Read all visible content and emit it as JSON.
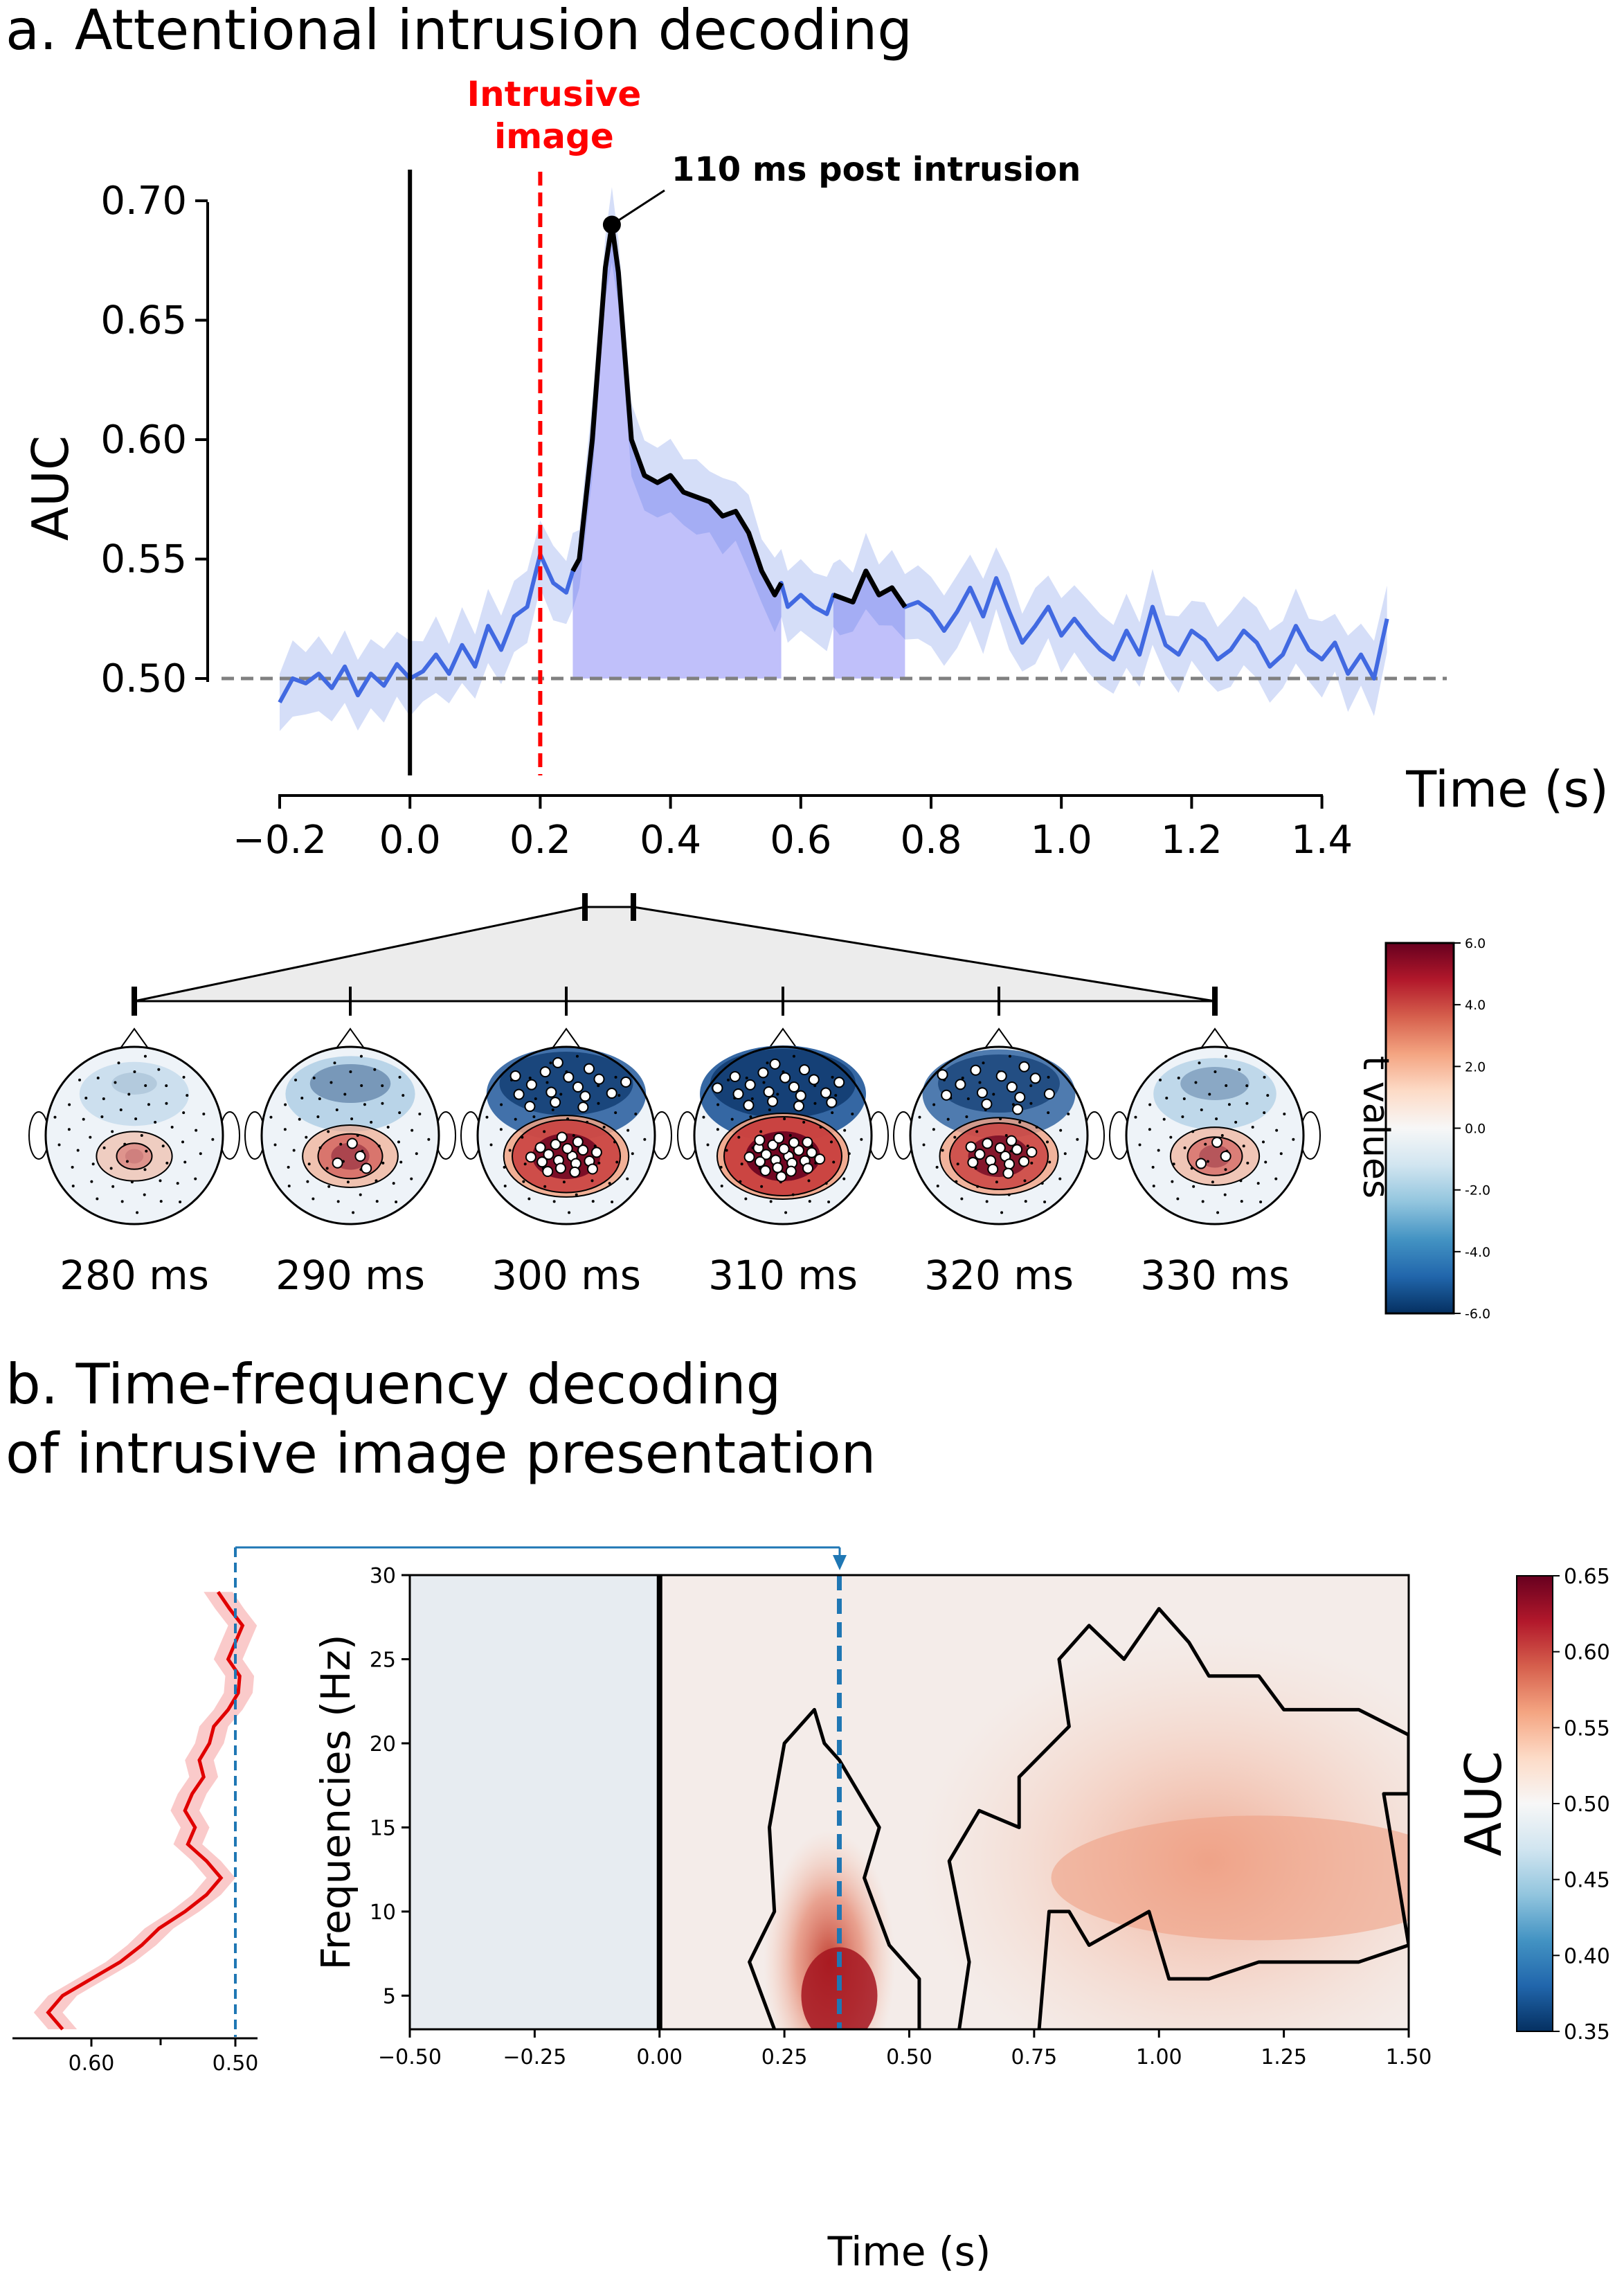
{
  "panel_a": {
    "title": "a. Attentional intrusion decoding",
    "intrusive_label_line1": "Intrusive",
    "intrusive_label_line2": "image",
    "peak_annotation": "110 ms post intrusion"
  },
  "panel_b": {
    "title_line1": "b. Time-frequency decoding",
    "title_line2": "of intrusive image presentation"
  },
  "topomaps": {
    "labels": [
      "280 ms",
      "290 ms",
      "300 ms",
      "310 ms",
      "320 ms",
      "330 ms"
    ],
    "colorbar_label": "t values",
    "colorbar_ticks": [
      "6.0",
      "4.0",
      "2.0",
      "0.0",
      "-2.0",
      "-4.0",
      "-6.0"
    ]
  },
  "colors": {
    "line_blue": "#4169e1",
    "line_sig": "#000000",
    "intrusion_red": "#ff0000",
    "tf_line_red": "#e00000",
    "dash_blue": "#1f77b4"
  },
  "chart_data": [
    {
      "type": "line",
      "xlabel": "Time (s)",
      "ylabel": "AUC",
      "xlim": [
        -0.2,
        1.5
      ],
      "ylim": [
        0.48,
        0.72
      ],
      "xticks": [
        "−0.2",
        "0.0",
        "0.2",
        "0.4",
        "0.6",
        "0.8",
        "1.0",
        "1.2",
        "1.4"
      ],
      "yticks": [
        "0.50",
        "0.55",
        "0.60",
        "0.65",
        "0.70"
      ],
      "chance_level": 0.5,
      "stimulus_onset": 0.0,
      "intrusion_onset": 0.2,
      "peak": {
        "x": 0.31,
        "y": 0.69
      },
      "significant_windows": [
        [
          0.25,
          0.57
        ],
        [
          0.65,
          0.76
        ]
      ],
      "x": [
        -0.2,
        -0.18,
        -0.16,
        -0.14,
        -0.12,
        -0.1,
        -0.08,
        -0.06,
        -0.04,
        -0.02,
        0.0,
        0.02,
        0.04,
        0.06,
        0.08,
        0.1,
        0.12,
        0.14,
        0.16,
        0.18,
        0.2,
        0.22,
        0.24,
        0.25,
        0.26,
        0.28,
        0.3,
        0.31,
        0.32,
        0.34,
        0.36,
        0.38,
        0.4,
        0.42,
        0.44,
        0.46,
        0.48,
        0.5,
        0.52,
        0.54,
        0.56,
        0.57,
        0.58,
        0.6,
        0.62,
        0.64,
        0.65,
        0.66,
        0.68,
        0.7,
        0.72,
        0.74,
        0.76,
        0.78,
        0.8,
        0.82,
        0.84,
        0.86,
        0.88,
        0.9,
        0.92,
        0.94,
        0.96,
        0.98,
        1.0,
        1.02,
        1.04,
        1.06,
        1.08,
        1.1,
        1.12,
        1.14,
        1.16,
        1.18,
        1.2,
        1.22,
        1.24,
        1.26,
        1.28,
        1.3,
        1.32,
        1.34,
        1.36,
        1.38,
        1.4,
        1.42,
        1.44,
        1.46,
        1.48,
        1.5
      ],
      "y": [
        0.49,
        0.5,
        0.498,
        0.502,
        0.496,
        0.505,
        0.493,
        0.502,
        0.497,
        0.506,
        0.5,
        0.503,
        0.51,
        0.502,
        0.514,
        0.505,
        0.522,
        0.512,
        0.526,
        0.53,
        0.552,
        0.54,
        0.536,
        0.545,
        0.55,
        0.6,
        0.672,
        0.69,
        0.67,
        0.6,
        0.585,
        0.582,
        0.585,
        0.578,
        0.576,
        0.574,
        0.568,
        0.57,
        0.561,
        0.545,
        0.535,
        0.54,
        0.53,
        0.535,
        0.53,
        0.527,
        0.535,
        0.534,
        0.532,
        0.545,
        0.535,
        0.538,
        0.53,
        0.532,
        0.528,
        0.52,
        0.528,
        0.538,
        0.526,
        0.542,
        0.528,
        0.515,
        0.522,
        0.53,
        0.518,
        0.525,
        0.518,
        0.512,
        0.508,
        0.52,
        0.51,
        0.53,
        0.514,
        0.51,
        0.52,
        0.516,
        0.508,
        0.512,
        0.52,
        0.515,
        0.505,
        0.51,
        0.522,
        0.512,
        0.508,
        0.515,
        0.502,
        0.51,
        0.5,
        0.525
      ]
    },
    {
      "type": "line",
      "xlabel": "",
      "ylabel": "",
      "xticks": [
        "0.60",
        "0.50"
      ],
      "orientation": "vertical",
      "frequencies": [
        3,
        4,
        5,
        6,
        7,
        8,
        9,
        10,
        11,
        12,
        13,
        14,
        15,
        16,
        17,
        18,
        19,
        20,
        21,
        22,
        23,
        24,
        25,
        26,
        27,
        28,
        29
      ],
      "auc": [
        0.62,
        0.63,
        0.62,
        0.6,
        0.58,
        0.565,
        0.553,
        0.535,
        0.52,
        0.51,
        0.52,
        0.533,
        0.528,
        0.535,
        0.53,
        0.522,
        0.525,
        0.518,
        0.515,
        0.505,
        0.498,
        0.497,
        0.505,
        0.5,
        0.495,
        0.504,
        0.512
      ]
    },
    {
      "type": "heatmap",
      "xlabel": "Time (s)",
      "ylabel": "Frequencies (Hz)",
      "xlim": [
        -0.5,
        1.5
      ],
      "ylim": [
        3,
        30
      ],
      "xticks": [
        "−0.50",
        "−0.25",
        "0.00",
        "0.25",
        "0.50",
        "0.75",
        "1.00",
        "1.25",
        "1.50"
      ],
      "yticks": [
        "5",
        "10",
        "15",
        "20",
        "25",
        "30"
      ],
      "colorbar_label": "AUC",
      "colorbar_ticks": [
        "0.65",
        "0.60",
        "0.55",
        "0.50",
        "0.45",
        "0.40",
        "0.35"
      ],
      "clim": [
        0.35,
        0.65
      ],
      "colormap": "RdBu_r",
      "onset": 0.0,
      "peak_time": 0.36
    }
  ]
}
